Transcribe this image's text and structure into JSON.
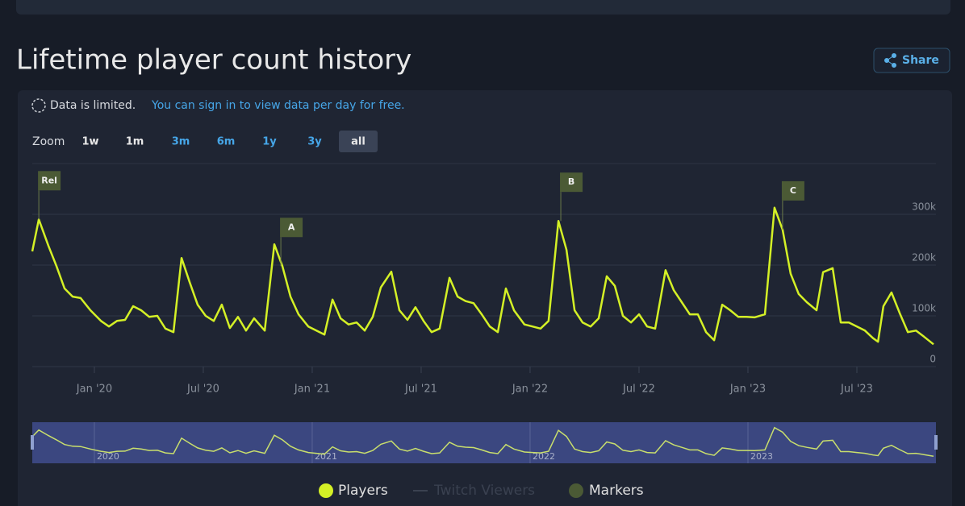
{
  "page": {
    "title": "Lifetime player count history",
    "share": "Share",
    "notice": "Data is limited.",
    "notice_link": "You can sign in to view data per day for free.",
    "zoom_label": "Zoom",
    "zoom": [
      {
        "label": "1w",
        "color": "#e8e8e8"
      },
      {
        "label": "1m",
        "color": "#e8e8e8"
      },
      {
        "label": "3m",
        "color": "#46a6e8"
      },
      {
        "label": "6m",
        "color": "#46a6e8"
      },
      {
        "label": "1y",
        "color": "#46a6e8"
      },
      {
        "label": "3y",
        "color": "#46a6e8"
      },
      {
        "label": "all",
        "color": "#e8e8e8",
        "active": true
      }
    ]
  },
  "chart_data": {
    "type": "line",
    "x": [
      2019.715,
      2019.745,
      2019.789,
      2019.826,
      2019.863,
      2019.9,
      2019.937,
      2019.982,
      2020.03,
      2020.067,
      2020.104,
      2020.141,
      2020.178,
      2020.215,
      2020.252,
      2020.289,
      2020.326,
      2020.363,
      2020.4,
      2020.437,
      2020.474,
      2020.511,
      2020.548,
      2020.585,
      2020.622,
      2020.659,
      2020.696,
      2020.733,
      2020.782,
      2020.826,
      2020.863,
      2020.9,
      2020.937,
      2020.982,
      2021.019,
      2021.056,
      2021.093,
      2021.13,
      2021.167,
      2021.204,
      2021.241,
      2021.278,
      2021.315,
      2021.363,
      2021.4,
      2021.437,
      2021.474,
      2021.511,
      2021.548,
      2021.585,
      2021.63,
      2021.667,
      2021.704,
      2021.741,
      2021.778,
      2021.815,
      2021.852,
      2021.889,
      2021.926,
      2021.974,
      2022.011,
      2022.048,
      2022.085,
      2022.13,
      2022.167,
      2022.204,
      2022.241,
      2022.278,
      2022.315,
      2022.352,
      2022.389,
      2022.426,
      2022.463,
      2022.5,
      2022.537,
      2022.574,
      2022.622,
      2022.659,
      2022.696,
      2022.733,
      2022.77,
      2022.808,
      2022.845,
      2022.882,
      2022.919,
      2022.956,
      2022.993,
      2023.03,
      2023.078,
      2023.122,
      2023.159,
      2023.196,
      2023.233,
      2023.27,
      2023.315,
      2023.345,
      2023.389,
      2023.426,
      2023.463,
      2023.5,
      2023.537,
      2023.574,
      2023.597,
      2023.622,
      2023.659,
      2023.696,
      2023.734,
      2023.771,
      2023.808,
      2023.852
    ],
    "series": [
      {
        "name": "Players",
        "color": "#d4f026",
        "values": [
          227000,
          290000,
          238000,
          198000,
          154000,
          138000,
          135000,
          111000,
          90000,
          79000,
          90000,
          92000,
          119000,
          111000,
          98000,
          100000,
          75000,
          68000,
          214000,
          167000,
          122000,
          100000,
          90000,
          122000,
          76000,
          98000,
          71000,
          95000,
          71000,
          241000,
          198000,
          138000,
          103000,
          79000,
          71000,
          63000,
          132000,
          95000,
          83000,
          87000,
          71000,
          98000,
          156000,
          187000,
          111000,
          92000,
          117000,
          90000,
          68000,
          75000,
          175000,
          138000,
          129000,
          125000,
          103000,
          79000,
          68000,
          154000,
          111000,
          83000,
          79000,
          75000,
          90000,
          287000,
          230000,
          111000,
          87000,
          79000,
          95000,
          178000,
          159000,
          100000,
          87000,
          103000,
          79000,
          75000,
          190000,
          151000,
          127000,
          103000,
          103000,
          68000,
          52000,
          122000,
          111000,
          98000,
          98000,
          97000,
          103000,
          313000,
          270000,
          183000,
          143000,
          127000,
          111000,
          186000,
          194000,
          87000,
          87000,
          79000,
          71000,
          56000,
          49000,
          119000,
          146000,
          106000,
          68000,
          71000,
          59000,
          44000
        ]
      }
    ],
    "legend_extra": [
      {
        "name": "Twitch Viewers",
        "color": "#5a6270",
        "hidden": true
      },
      {
        "name": "Markers",
        "color": "#4b5a35"
      }
    ],
    "markers": [
      {
        "label": "Rel",
        "x": 2019.745
      },
      {
        "label": "A",
        "x": 2020.856
      },
      {
        "label": "B",
        "x": 2022.141
      },
      {
        "label": "C",
        "x": 2023.159
      }
    ],
    "xlim": [
      2019.715,
      2023.863
    ],
    "xticks": [
      {
        "value": 2020,
        "label": "Jan '20"
      },
      {
        "value": 2020.5,
        "label": "Jul '20"
      },
      {
        "value": 2021,
        "label": "Jan '21"
      },
      {
        "value": 2021.5,
        "label": "Jul '21"
      },
      {
        "value": 2022,
        "label": "Jan '22"
      },
      {
        "value": 2022.5,
        "label": "Jul '22"
      },
      {
        "value": 2023,
        "label": "Jan '23"
      },
      {
        "value": 2023.5,
        "label": "Jul '23"
      }
    ],
    "ylim": [
      0,
      400000
    ],
    "yticks": [
      0,
      {
        "value": 100000,
        "label": "100k"
      },
      {
        "value": 200000,
        "label": "200k"
      },
      {
        "value": 300000,
        "label": "300k"
      }
    ],
    "grid": true,
    "navigator_ticks": [
      {
        "value": 2020,
        "label": "2020"
      },
      {
        "value": 2021,
        "label": "2021"
      },
      {
        "value": 2022,
        "label": "2022"
      },
      {
        "value": 2023,
        "label": "2023"
      }
    ]
  }
}
